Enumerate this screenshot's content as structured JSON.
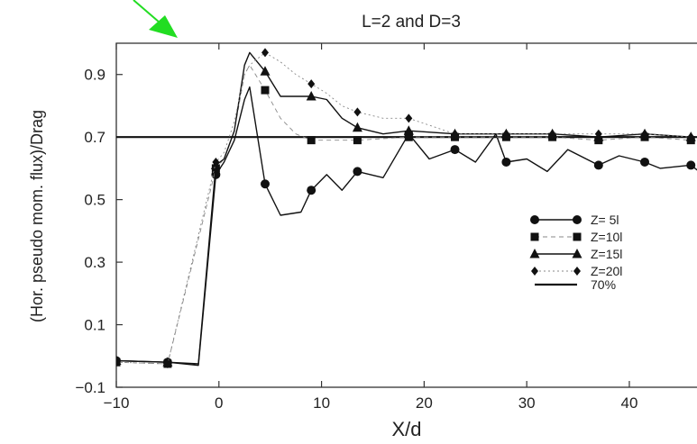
{
  "chart_data": {
    "type": "line",
    "title": "L=2 and D=3",
    "xlabel": "X/d",
    "ylabel": "(Hor. pseudo mom. flux)/Drag",
    "xlim": [
      -10,
      48
    ],
    "ylim": [
      -0.1,
      1.0
    ],
    "xticks": [
      -10,
      0,
      10,
      20,
      30,
      40
    ],
    "xtick_labels": [
      "−10",
      "0",
      "10",
      "20",
      "30",
      "40"
    ],
    "yticks": [
      -0.1,
      0.1,
      0.3,
      0.5,
      0.7,
      0.9
    ],
    "ytick_labels": [
      "−0.1",
      "0.1",
      "0.3",
      "0.5",
      "0.7",
      "0.9"
    ],
    "grid": false,
    "legend_position": "right",
    "reference_line": {
      "name": "70%",
      "y": 0.7,
      "color": "#111111"
    },
    "series": [
      {
        "name": "Z= 5l",
        "marker": "circle",
        "line_style": "solid",
        "color": "#111111",
        "x": [
          -10,
          -5,
          -2,
          -0.3,
          0.5,
          1.5,
          2.5,
          3,
          4.5,
          6,
          8,
          9,
          10.5,
          12,
          13.5,
          16,
          18.5,
          20.5,
          23,
          25,
          27,
          28,
          30,
          32,
          34,
          37,
          39,
          41.5,
          43,
          46,
          48
        ],
        "y": [
          -0.015,
          -0.02,
          -0.03,
          0.58,
          0.62,
          0.69,
          0.82,
          0.86,
          0.55,
          0.45,
          0.46,
          0.53,
          0.58,
          0.53,
          0.59,
          0.57,
          0.71,
          0.63,
          0.66,
          0.62,
          0.71,
          0.62,
          0.63,
          0.59,
          0.66,
          0.61,
          0.64,
          0.62,
          0.6,
          0.61,
          0.56
        ]
      },
      {
        "name": "Z=10l",
        "marker": "square",
        "line_style": "dashed",
        "color": "#111111",
        "x": [
          -10,
          -5,
          -0.3,
          0.5,
          1.5,
          2.5,
          3,
          4.5,
          6,
          7.5,
          9,
          13.5,
          18.5,
          23,
          28,
          32.5,
          37,
          41.5,
          46
        ],
        "y": [
          -0.02,
          -0.025,
          0.6,
          0.63,
          0.72,
          0.9,
          0.93,
          0.85,
          0.76,
          0.71,
          0.69,
          0.69,
          0.7,
          0.7,
          0.7,
          0.7,
          0.69,
          0.7,
          0.69
        ]
      },
      {
        "name": "Z=15l",
        "marker": "triangle",
        "line_style": "solid",
        "color": "#111111",
        "x": [
          -10,
          -5,
          -2,
          -0.3,
          0.5,
          1.5,
          2.5,
          3,
          4.5,
          6,
          7.5,
          9,
          10.5,
          12,
          13.5,
          16,
          18.5,
          23,
          28,
          32.5,
          37,
          41.5,
          46,
          48
        ],
        "y": [
          -0.015,
          -0.02,
          -0.025,
          0.61,
          0.63,
          0.72,
          0.93,
          0.97,
          0.91,
          0.83,
          0.83,
          0.83,
          0.82,
          0.76,
          0.73,
          0.71,
          0.72,
          0.71,
          0.71,
          0.71,
          0.7,
          0.71,
          0.7,
          0.7
        ]
      },
      {
        "name": "Z=20l",
        "marker": "diamond",
        "line_style": "dotted",
        "color": "#111111",
        "x": [
          -10,
          -5,
          -0.3,
          0.5,
          1.5,
          2.5,
          3,
          4.5,
          6,
          7.5,
          9,
          10.5,
          12,
          13.5,
          16,
          18.5,
          23,
          28,
          32.5,
          37,
          41.5,
          46
        ],
        "y": [
          -0.02,
          -0.025,
          0.62,
          0.65,
          0.75,
          0.9,
          0.93,
          0.97,
          0.94,
          0.9,
          0.87,
          0.84,
          0.8,
          0.78,
          0.76,
          0.76,
          0.71,
          0.71,
          0.71,
          0.71,
          0.71,
          0.7
        ]
      }
    ]
  },
  "annotation": {
    "type": "arrow",
    "color": "#22dd22"
  }
}
